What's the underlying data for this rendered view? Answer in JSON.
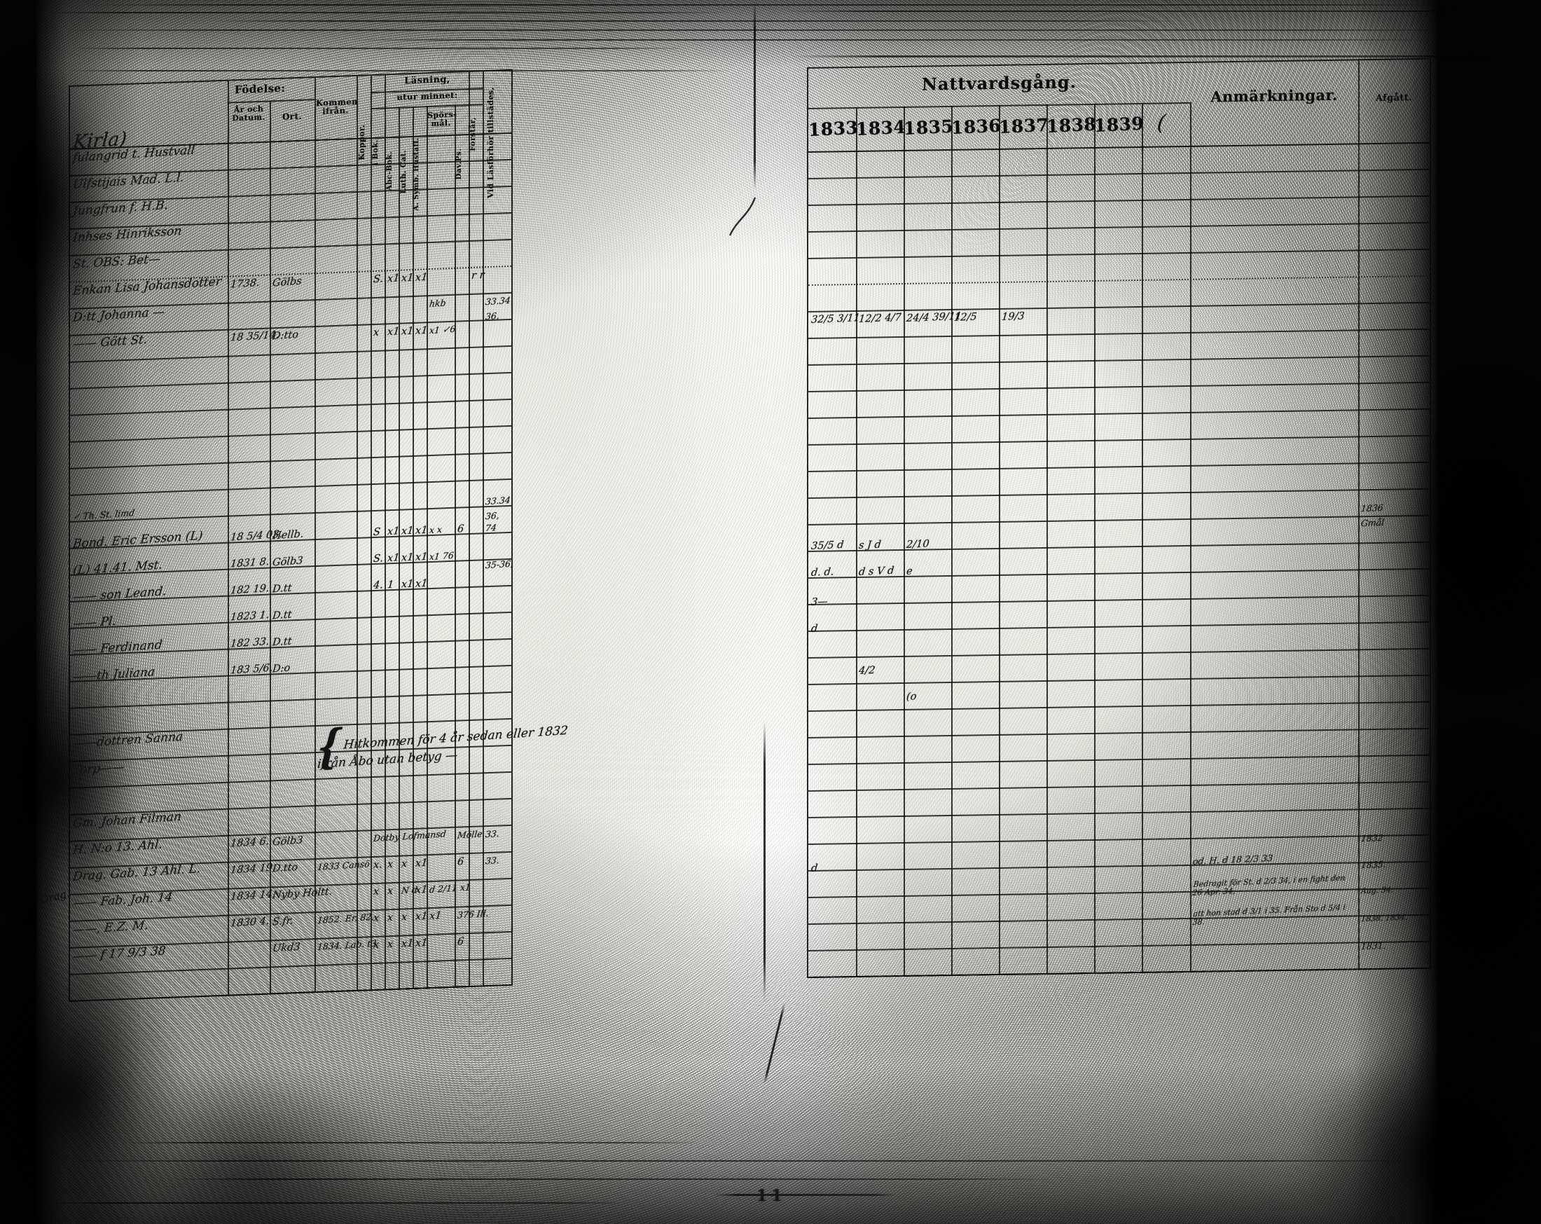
{
  "scan": {
    "page_number": "11",
    "margin_script": "Drag."
  },
  "left_page": {
    "headers": {
      "fodelse": "Födelse:",
      "ar_datum": "År och Datum.",
      "ort": "Ort.",
      "kommen": "Kommen ifrån.",
      "koppor": "Koppor.",
      "lasning": "Läsning,",
      "utur": "utur minnet:",
      "i_bok": "i Bok.",
      "abc": "Abc-Bok.",
      "luth": "Luth. Cat.",
      "symb": "A. Symb. Hustafl.",
      "spors": "Spörs-mål.",
      "davps": "Dav.Ps.",
      "forstar": "Förstår,",
      "tillstades": "Vid Läsförhör tillstädes,"
    },
    "handwriting": [
      {
        "r": -0.75,
        "c": 0,
        "t": "Kirla)",
        "sz": "lg"
      },
      {
        "r": 0.0,
        "c": 0,
        "s": 2,
        "t": "fulangrid t. Hustvall",
        "sz": "md"
      },
      {
        "r": 1.0,
        "c": 0,
        "t": "Ulfstijais Mad. L.l.",
        "sz": "md"
      },
      {
        "r": 2.0,
        "c": 0,
        "t": "Jungfrun f. H.B.",
        "sz": "md"
      },
      {
        "r": 3.0,
        "c": 0,
        "t": "Inhses Hinriksson",
        "sz": "md"
      },
      {
        "r": 4.0,
        "c": 0,
        "t": "St. OBS: Bet—",
        "sz": "md"
      },
      {
        "r": 5.0,
        "c": 0,
        "t": "Enkan Lisa Johansdotter",
        "sz": "md"
      },
      {
        "r": 5.0,
        "c": 1,
        "t": "1738."
      },
      {
        "r": 5.0,
        "c": 2,
        "t": "Gölbs"
      },
      {
        "r": 5.0,
        "c": 5,
        "t": "S."
      },
      {
        "r": 5.0,
        "c": 6,
        "t": "x1"
      },
      {
        "r": 5.0,
        "c": 7,
        "t": "x1"
      },
      {
        "r": 5.0,
        "c": 8,
        "t": "x1"
      },
      {
        "r": 5.0,
        "c": 11,
        "s": 2,
        "t": "r  r"
      },
      {
        "r": 6.0,
        "c": 0,
        "t": "D:tt Johanna —",
        "sz": "md"
      },
      {
        "r": 6.0,
        "c": 9,
        "t": "hkb",
        "sz": "sm"
      },
      {
        "r": 6.0,
        "c": 12,
        "t": "33.34",
        "sz": "sm"
      },
      {
        "r": 6.55,
        "c": 12,
        "t": "36,",
        "sz": "sm"
      },
      {
        "r": 7.0,
        "c": 0,
        "t": "—— Gött St.",
        "sz": "md"
      },
      {
        "r": 7.0,
        "c": 1,
        "t": "18 35/14."
      },
      {
        "r": 7.0,
        "c": 2,
        "t": "D:tto"
      },
      {
        "r": 7.0,
        "c": 5,
        "t": "x"
      },
      {
        "r": 7.0,
        "c": 6,
        "t": "x1"
      },
      {
        "r": 7.0,
        "c": 7,
        "t": "x1"
      },
      {
        "r": 7.0,
        "c": 8,
        "t": "x1"
      },
      {
        "r": 7.0,
        "c": 9,
        "t": "x1  ✓6",
        "sz": "sm"
      },
      {
        "r": 13.5,
        "c": 0,
        "t": "✓ Th. St. limd",
        "sz": "sm"
      },
      {
        "r": 13.5,
        "c": 12,
        "t": "33.34",
        "sz": "sm"
      },
      {
        "r": 14.05,
        "c": 12,
        "t": "36,",
        "sz": "sm"
      },
      {
        "r": 14.5,
        "c": 0,
        "t": "Bond. Eric Ersson (L)",
        "sz": "md"
      },
      {
        "r": 14.5,
        "c": 1,
        "t": "18 5/4 03."
      },
      {
        "r": 14.5,
        "c": 2,
        "t": "Hellb."
      },
      {
        "r": 14.5,
        "c": 5,
        "t": "S"
      },
      {
        "r": 14.5,
        "c": 6,
        "t": "x1"
      },
      {
        "r": 14.5,
        "c": 7,
        "t": "x1"
      },
      {
        "r": 14.5,
        "c": 8,
        "t": "x1"
      },
      {
        "r": 14.5,
        "c": 9,
        "t": "x   x",
        "sz": "sm"
      },
      {
        "r": 14.5,
        "c": 10,
        "t": "6"
      },
      {
        "r": 14.5,
        "c": 12,
        "t": "74",
        "sz": "sm"
      },
      {
        "r": 15.5,
        "c": 0,
        "t": "(L) 41.41. Mst.",
        "sz": "md"
      },
      {
        "r": 15.5,
        "c": 1,
        "t": "1831 8."
      },
      {
        "r": 15.5,
        "c": 2,
        "t": "Gölb3"
      },
      {
        "r": 15.5,
        "c": 5,
        "t": "S."
      },
      {
        "r": 15.5,
        "c": 6,
        "t": "x1"
      },
      {
        "r": 15.5,
        "c": 7,
        "t": "x1"
      },
      {
        "r": 15.5,
        "c": 8,
        "t": "x1"
      },
      {
        "r": 15.5,
        "c": 9,
        "t": "x1    76",
        "sz": "sm"
      },
      {
        "r": 15.9,
        "c": 12,
        "t": "35-36,",
        "sz": "sm"
      },
      {
        "r": 16.5,
        "c": 0,
        "t": "—— son Leand.",
        "sz": "md"
      },
      {
        "r": 16.5,
        "c": 1,
        "t": "182 19."
      },
      {
        "r": 16.5,
        "c": 2,
        "t": "D.tt"
      },
      {
        "r": 16.5,
        "c": 5,
        "t": "4."
      },
      {
        "r": 16.5,
        "c": 6,
        "t": "1"
      },
      {
        "r": 16.5,
        "c": 7,
        "t": "x1"
      },
      {
        "r": 16.5,
        "c": 8,
        "t": "x1"
      },
      {
        "r": 17.5,
        "c": 0,
        "t": "—— Pl.",
        "sz": "md"
      },
      {
        "r": 17.5,
        "c": 1,
        "t": "1823 1."
      },
      {
        "r": 17.5,
        "c": 2,
        "t": "D.tt"
      },
      {
        "r": 18.5,
        "c": 0,
        "t": "—— Ferdinand",
        "sz": "md"
      },
      {
        "r": 18.5,
        "c": 1,
        "t": "182 33."
      },
      {
        "r": 18.5,
        "c": 2,
        "t": "D.tt"
      },
      {
        "r": 19.5,
        "c": 0,
        "t": "——th Juliana",
        "sz": "md"
      },
      {
        "r": 19.5,
        "c": 1,
        "t": "183 5/6."
      },
      {
        "r": 19.5,
        "c": 2,
        "t": "D:o"
      },
      {
        "r": 22.0,
        "c": 0,
        "t": "——dottren Sanna",
        "sz": "md"
      },
      {
        "r": 22.0,
        "c": 3,
        "s": 7,
        "t": "Hitkommen för 4 år sedan eller 1832",
        "sz": "md",
        "brace": true
      },
      {
        "r": 23.0,
        "c": 0,
        "t": "Torp——",
        "sz": "md"
      },
      {
        "r": 23.1,
        "c": 3,
        "s": 7,
        "t": "ifrån Åbo utan betyg —",
        "sz": "md"
      },
      {
        "r": 25.0,
        "c": 0,
        "t": "Gm. Johan Filman",
        "sz": "md"
      },
      {
        "r": 26.0,
        "c": 0,
        "t": "H. N:o 13. Ahl.",
        "sz": "md"
      },
      {
        "r": 26.0,
        "c": 1,
        "t": "1834 6."
      },
      {
        "r": 26.0,
        "c": 2,
        "t": "Gölb3"
      },
      {
        "r": 26.0,
        "c": 5,
        "s": 5,
        "t": "Dotby Lofmansd",
        "sz": "sm"
      },
      {
        "r": 26.0,
        "c": 10,
        "s": 2,
        "t": "Mölle",
        "sz": "sm"
      },
      {
        "r": 26.0,
        "c": 12,
        "t": "33.",
        "sz": "sm"
      },
      {
        "r": 27.0,
        "c": 0,
        "t": "Drag. Gab. 13 Ahl. L.",
        "sz": "md"
      },
      {
        "r": 27.0,
        "c": 1,
        "t": "1834 19."
      },
      {
        "r": 27.0,
        "c": 2,
        "t": "D.tto"
      },
      {
        "r": 27.0,
        "c": 3,
        "t": "1833 Cansö",
        "sz": "sm"
      },
      {
        "r": 27.0,
        "c": 5,
        "t": "x."
      },
      {
        "r": 27.0,
        "c": 6,
        "t": "x"
      },
      {
        "r": 27.0,
        "c": 7,
        "t": "x"
      },
      {
        "r": 27.0,
        "c": 8,
        "t": "x1"
      },
      {
        "r": 27.0,
        "c": 10,
        "t": "6"
      },
      {
        "r": 27.0,
        "c": 12,
        "t": "33.",
        "sz": "sm"
      },
      {
        "r": 28.0,
        "c": 0,
        "t": "—— Fab. Joh. 14",
        "sz": "md"
      },
      {
        "r": 28.0,
        "c": 1,
        "t": "1834 14."
      },
      {
        "r": 28.0,
        "c": 2,
        "t": "Nyby Holtt."
      },
      {
        "r": 28.0,
        "c": 5,
        "t": "x"
      },
      {
        "r": 28.0,
        "c": 6,
        "t": "x"
      },
      {
        "r": 28.0,
        "c": 7,
        "t": "N d",
        "sz": "sm"
      },
      {
        "r": 28.0,
        "c": 8,
        "t": "x1"
      },
      {
        "r": 28.0,
        "c": 9,
        "t": "d 2/11 x1",
        "sz": "sm"
      },
      {
        "r": 29.0,
        "c": 0,
        "t": "——, E.Z. M.",
        "sz": "md"
      },
      {
        "r": 29.0,
        "c": 1,
        "t": "1830 4."
      },
      {
        "r": 29.0,
        "c": 2,
        "t": "S.fr."
      },
      {
        "r": 29.0,
        "c": 3,
        "t": "1852. Er. 82.",
        "sz": "sm"
      },
      {
        "r": 29.0,
        "c": 5,
        "t": "x"
      },
      {
        "r": 29.0,
        "c": 6,
        "t": "x"
      },
      {
        "r": 29.0,
        "c": 7,
        "t": "x"
      },
      {
        "r": 29.0,
        "c": 8,
        "t": "x1"
      },
      {
        "r": 29.0,
        "c": 9,
        "t": "x1"
      },
      {
        "r": 29.0,
        "c": 10,
        "s": 2,
        "t": "376 Ill.",
        "sz": "sm"
      },
      {
        "r": 30.0,
        "c": 0,
        "t": "—— f 17 9/3 38",
        "sz": "md"
      },
      {
        "r": 30.0,
        "c": 2,
        "t": "Ukd3"
      },
      {
        "r": 30.0,
        "c": 3,
        "t": "1834. Lab. t3",
        "sz": "sm"
      },
      {
        "r": 30.0,
        "c": 5,
        "t": "x"
      },
      {
        "r": 30.0,
        "c": 6,
        "t": "x"
      },
      {
        "r": 30.0,
        "c": 7,
        "t": "x1"
      },
      {
        "r": 30.0,
        "c": 8,
        "t": "x1"
      },
      {
        "r": 30.0,
        "c": 10,
        "t": "6"
      }
    ]
  },
  "right_page": {
    "headers": {
      "title": "Nattvardsgång.",
      "years": [
        "1833",
        "1834",
        "1835",
        "1836",
        "1837",
        "1838",
        "1839"
      ],
      "year_flourish": "(",
      "anm": "Anmärkningar.",
      "afg": "Afgått."
    },
    "handwriting": [
      {
        "r": 6.0,
        "c": 0,
        "t": "32/5  3/11"
      },
      {
        "r": 6.0,
        "c": 1,
        "t": "12/2  4/7"
      },
      {
        "r": 6.0,
        "c": 2,
        "t": "24/4  39/11"
      },
      {
        "r": 6.0,
        "c": 3,
        "t": "12/5"
      },
      {
        "r": 6.0,
        "c": 4,
        "t": "19/3"
      },
      {
        "r": 13.4,
        "c": 9,
        "t": "1836",
        "sz": "sm"
      },
      {
        "r": 13.95,
        "c": 9,
        "t": "Gmål",
        "sz": "sm"
      },
      {
        "r": 14.5,
        "c": 0,
        "t": "35/5  d"
      },
      {
        "r": 14.5,
        "c": 1,
        "t": "s  J  d"
      },
      {
        "r": 14.5,
        "c": 2,
        "t": "2/10"
      },
      {
        "r": 15.5,
        "c": 0,
        "t": "d. d."
      },
      {
        "r": 15.5,
        "c": 1,
        "t": "d  s  V  d"
      },
      {
        "r": 15.5,
        "c": 2,
        "t": "e"
      },
      {
        "r": 16.6,
        "c": 0,
        "t": "3—"
      },
      {
        "r": 17.6,
        "c": 0,
        "t": "d"
      },
      {
        "r": 19.2,
        "c": 1,
        "t": "4/2"
      },
      {
        "r": 20.2,
        "c": 2,
        "t": "(o"
      },
      {
        "r": 25.8,
        "c": 9,
        "t": "1832",
        "sz": "sm"
      },
      {
        "r": 26.6,
        "c": 0,
        "t": "d"
      },
      {
        "r": 26.55,
        "c": 8,
        "t": "od. H. d 18 2/3 33",
        "sz": "sm"
      },
      {
        "r": 26.8,
        "c": 9,
        "t": "1835.",
        "sz": "sm"
      },
      {
        "r": 27.45,
        "c": 8,
        "s": 1,
        "t": "Bedragit för St. d 2/3 34, i en fight den 26 Apr. 34,",
        "sz": "xs"
      },
      {
        "r": 27.8,
        "c": 9,
        "t": "Aug. 34.",
        "sz": "xs"
      },
      {
        "r": 28.55,
        "c": 8,
        "t": "att hon stad d 3/1 i 35. Från Sto d 5/4 i 38.",
        "sz": "xs"
      },
      {
        "r": 28.85,
        "c": 9,
        "t": "1838. 1834.",
        "sz": "xs"
      },
      {
        "r": 29.85,
        "c": 9,
        "t": "1831.",
        "sz": "sm"
      }
    ]
  }
}
